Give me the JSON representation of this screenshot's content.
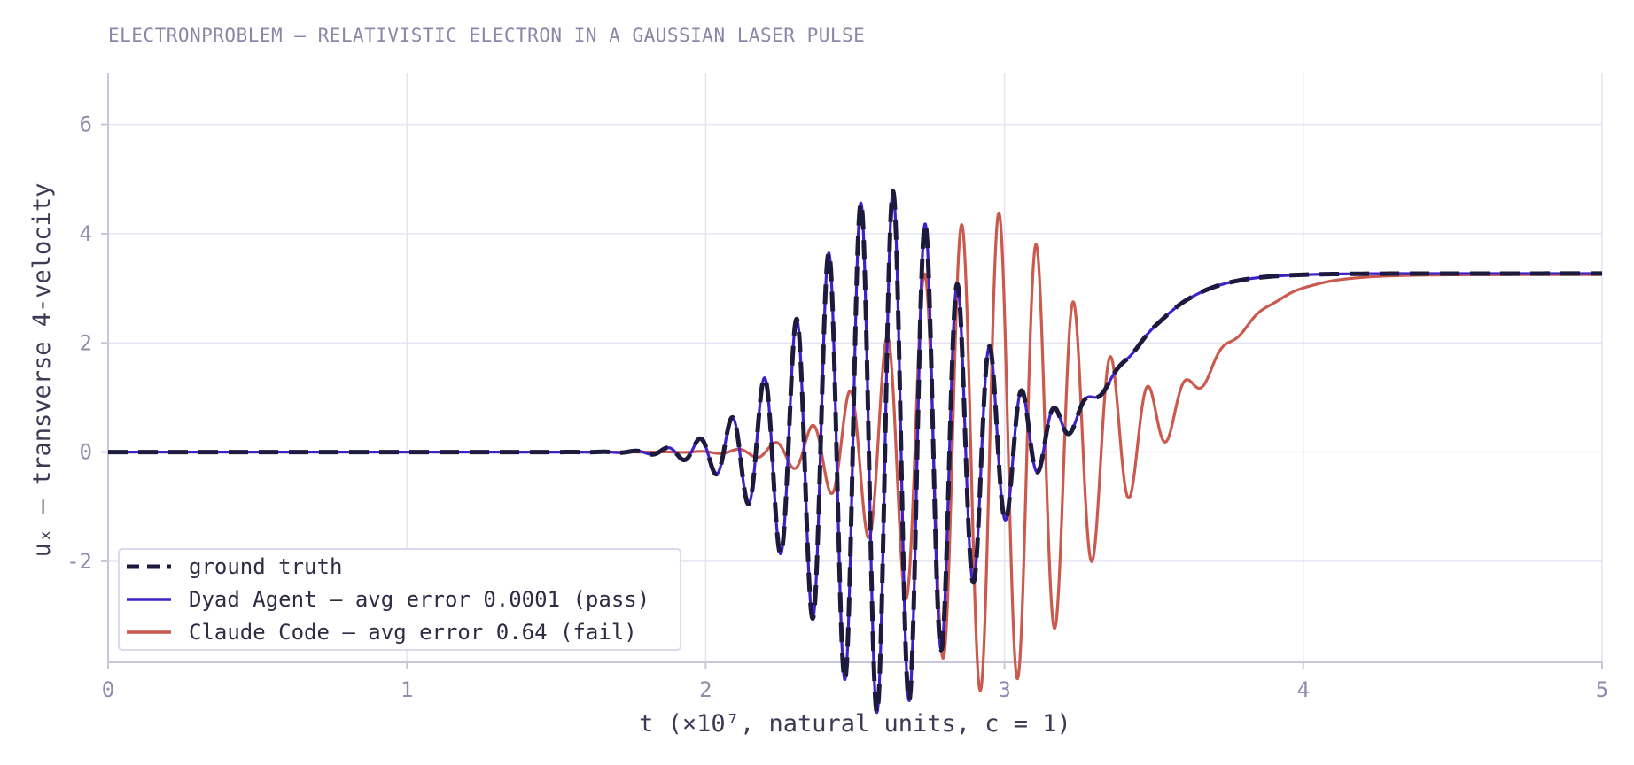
{
  "chart_data": {
    "type": "line",
    "title": "ELECTRONPROBLEM — RELATIVISTIC ELECTRON IN A GAUSSIAN LASER PULSE",
    "xlabel": "t  (×10⁷, natural units, c = 1)",
    "ylabel": "uₓ — transverse 4-velocity",
    "xlim": [
      0,
      5
    ],
    "ylim": [
      -3.85,
      6.95
    ],
    "xticks": [
      "0",
      "1",
      "2",
      "3",
      "4",
      "5"
    ],
    "yticks": [
      "-2",
      "0",
      "2",
      "4",
      "6"
    ],
    "xtick_values": [
      0,
      1,
      2,
      3,
      4,
      5
    ],
    "ytick_values": [
      -2,
      0,
      2,
      4,
      6
    ],
    "grid": true,
    "legend_position": "bottom-left",
    "series": [
      {
        "name": "ground truth",
        "color": "#1c1a3d",
        "style": "dashed",
        "model": {
          "t0": 2.6,
          "sigma": 0.36,
          "amplitude": 4.8,
          "period": 0.108,
          "offset": 3.27,
          "t_end": 3.75
        }
      },
      {
        "name": "Dyad Agent — avg error 0.0001  (pass)",
        "color": "#3d22c9",
        "style": "solid",
        "model": {
          "t0": 2.6,
          "sigma": 0.36,
          "amplitude": 4.8,
          "period": 0.108,
          "offset": 3.27,
          "t_end": 3.75
        }
      },
      {
        "name": "Claude Code — avg error 0.64  (fail)",
        "color": "#c95a4d",
        "style": "solid",
        "model": {
          "t0": 2.95,
          "sigma": 0.4,
          "amplitude": 4.4,
          "period": 0.125,
          "offset": 3.25,
          "t_end": 4.05
        }
      }
    ]
  }
}
